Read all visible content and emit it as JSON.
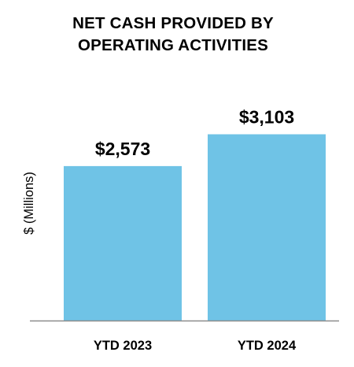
{
  "chart_data": {
    "type": "bar",
    "title_lines": [
      "NET CASH PROVIDED BY",
      "OPERATING ACTIVITIES"
    ],
    "ylabel": "$ (Millions)",
    "xlabel": "",
    "categories": [
      "YTD 2023",
      "YTD 2024"
    ],
    "values": [
      2573,
      3103
    ],
    "data_labels": [
      "$2,573",
      "$3,103"
    ],
    "ylim": [
      0,
      3700
    ],
    "grid": false,
    "legend": "none",
    "colors": {
      "bar": "#6FC3E6",
      "axis": "#8C8C8C",
      "text": "#000000"
    }
  }
}
